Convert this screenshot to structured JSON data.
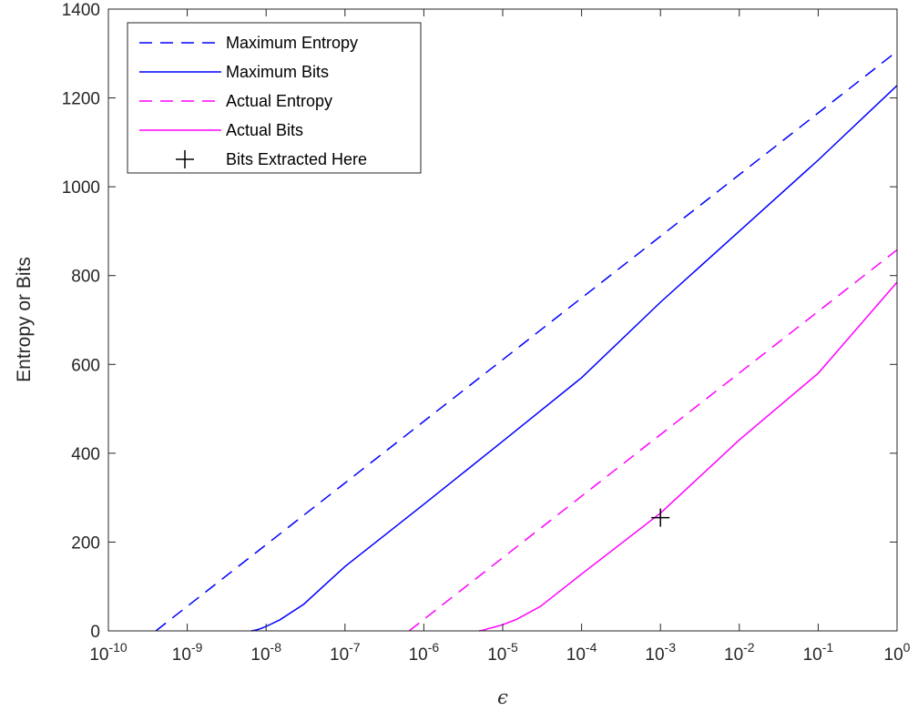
{
  "chart_data": {
    "type": "line",
    "title": "",
    "xlabel": "ϵ",
    "ylabel": "Entropy or Bits",
    "xscale": "log",
    "xlim": [
      1e-10,
      1
    ],
    "ylim": [
      0,
      1400
    ],
    "x_ticks": [
      {
        "base": "10",
        "exp": "-10"
      },
      {
        "base": "10",
        "exp": "-9"
      },
      {
        "base": "10",
        "exp": "-8"
      },
      {
        "base": "10",
        "exp": "-7"
      },
      {
        "base": "10",
        "exp": "-6"
      },
      {
        "base": "10",
        "exp": "-5"
      },
      {
        "base": "10",
        "exp": "-4"
      },
      {
        "base": "10",
        "exp": "-3"
      },
      {
        "base": "10",
        "exp": "-2"
      },
      {
        "base": "10",
        "exp": "-1"
      },
      {
        "base": "10",
        "exp": "0"
      }
    ],
    "y_ticks": [
      "0",
      "200",
      "400",
      "600",
      "800",
      "1000",
      "1200",
      "1400"
    ],
    "grid": false,
    "legend_position": "top-left",
    "series": [
      {
        "name": "Maximum Entropy",
        "color": "#0000ff",
        "style": "dashed",
        "x": [
          4e-10,
          1
        ],
        "y": [
          0,
          1305
        ]
      },
      {
        "name": "Maximum Bits",
        "color": "#0000ff",
        "style": "solid",
        "x": [
          6.5e-09,
          7.5e-09,
          8.5e-09,
          1e-08,
          1.5e-08,
          3e-08,
          1e-07,
          1e-06,
          1e-05,
          0.0001,
          0.001,
          0.01,
          0.1,
          1
        ],
        "y": [
          0,
          2,
          5,
          10,
          25,
          60,
          145,
          285,
          427,
          570,
          740,
          900,
          1060,
          1228
        ]
      },
      {
        "name": "Actual Entropy",
        "color": "#ff00ff",
        "style": "dashed",
        "x": [
          6.5e-07,
          1
        ],
        "y": [
          0,
          858
        ]
      },
      {
        "name": "Actual Bits",
        "color": "#ff00ff",
        "style": "solid",
        "x": [
          5e-06,
          5.8e-06,
          6.5e-06,
          8e-06,
          1e-05,
          1.5e-05,
          3e-05,
          0.0001,
          0.001,
          0.01,
          0.1,
          1
        ],
        "y": [
          0,
          2,
          5,
          9,
          14,
          26,
          55,
          128,
          265,
          430,
          580,
          785
        ]
      },
      {
        "name": "Bits Extracted Here",
        "color": "#000000",
        "style": "marker-plus",
        "x": [
          0.001
        ],
        "y": [
          255
        ]
      }
    ]
  }
}
